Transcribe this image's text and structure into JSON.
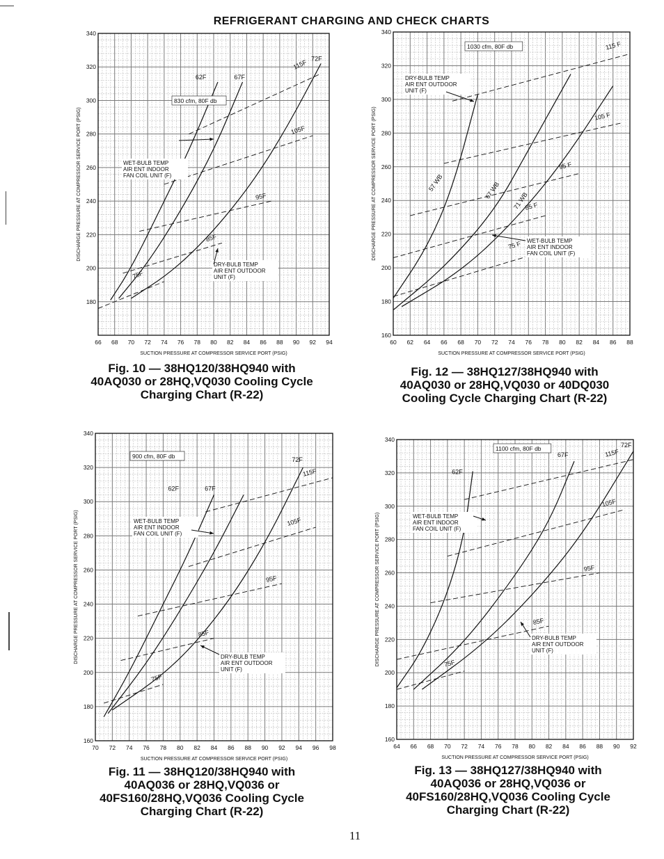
{
  "page": {
    "title": "REFRIGERANT CHARGING AND CHECK CHARTS",
    "page_number": "11"
  },
  "colors": {
    "ink": "#111111",
    "grid_minor": "#b9b9b9",
    "grid_major": "#7a7a7a"
  },
  "chart_data": [
    {
      "id": "fig10",
      "type": "line",
      "caption": [
        "Fig. 10 — 38HQ120/38HQ940 with",
        "40AQ030 or 28HQ,VQ030 Cooling Cycle",
        "Charging Chart (R-22)"
      ],
      "xlabel": "SUCTION PRESSURE AT COMPRESSOR SERVICE PORT (PSIG)",
      "ylabel": "DISCHARGE PRESSURE AT COMPRESSOR SERVICE PORT (PSIG)",
      "xlim": [
        66,
        94
      ],
      "ylim": [
        160,
        340
      ],
      "xticks": [
        66,
        68,
        70,
        72,
        74,
        76,
        78,
        80,
        82,
        84,
        86,
        88,
        90,
        92,
        94
      ],
      "yticks": [
        180,
        200,
        220,
        240,
        260,
        280,
        300,
        320,
        340
      ],
      "ytick_labels": [
        "180",
        "200",
        "220",
        "240",
        "260",
        "280",
        "300",
        "320",
        "340"
      ],
      "legend_box": "830 cfm, 80F db",
      "wb_note": [
        "WET-BULB TEMP",
        "AIR ENT INDOOR",
        "FAN COIL UNIT (F)"
      ],
      "db_note": [
        "DRY-BULB TEMP",
        "AIR ENT OUTDOOR",
        "UNIT (F)"
      ],
      "wb_series": [
        {
          "name": "62F",
          "points": [
            [
              67.5,
              181
            ],
            [
              70,
              200
            ],
            [
              74,
              240
            ],
            [
              77,
              270
            ],
            [
              80.5,
              311
            ]
          ]
        },
        {
          "name": "67F",
          "points": [
            [
              68.5,
              182
            ],
            [
              72,
              203
            ],
            [
              76,
              234
            ],
            [
              80,
              270
            ],
            [
              83.5,
              311
            ]
          ]
        },
        {
          "name": "72F",
          "points": [
            [
              70,
              182
            ],
            [
              75,
              198
            ],
            [
              80,
              222
            ],
            [
              85,
              253
            ],
            [
              89,
              285
            ],
            [
              93,
              322
            ]
          ]
        }
      ],
      "db_series": [
        {
          "name": "75F",
          "points": [
            [
              66,
              176
            ],
            [
              74,
              192
            ]
          ]
        },
        {
          "name": "85F",
          "points": [
            [
              69,
              197
            ],
            [
              81,
              215
            ]
          ]
        },
        {
          "name": "95F",
          "points": [
            [
              71,
              222
            ],
            [
              87,
              240
            ]
          ]
        },
        {
          "name": "105F",
          "points": [
            [
              74,
              250
            ],
            [
              92,
              279
            ]
          ]
        },
        {
          "name": "115F",
          "points": [
            [
              77,
              280
            ],
            [
              93,
              316
            ]
          ]
        }
      ]
    },
    {
      "id": "fig12",
      "type": "line",
      "caption": [
        "Fig. 12 — 38HQ127/38HQ940 with",
        "40AQ030 or 28HQ,VQ030 or 40DQ030",
        "Cooling Cycle Charging Chart (R-22)"
      ],
      "xlabel": "SUCTION PRESSURE AT COMPRESSOR SERVICE PORT (PSIG)",
      "ylabel": "DISCHARGE PRESSURE AT COMPRESSOR SERVICE PORT (PSIG)",
      "xlim": [
        60,
        88
      ],
      "ylim": [
        160,
        340
      ],
      "xticks": [
        60,
        62,
        64,
        66,
        68,
        70,
        72,
        74,
        76,
        78,
        80,
        82,
        84,
        86,
        88
      ],
      "yticks": [
        160,
        180,
        200,
        220,
        240,
        260,
        280,
        300,
        320,
        340
      ],
      "ytick_labels": [
        "160",
        "180",
        "200",
        "220",
        "240",
        "260",
        "280",
        "300",
        "320",
        "340"
      ],
      "legend_box": "1030 cfm, 80F db",
      "wb_note": [
        "WET-BULB TEMP",
        "AIR ENT INDOOR",
        "FAN COIL UNIT (F)"
      ],
      "db_note": [
        "DRY-BULB TEMP",
        "AIR ENT OUTDOOR",
        "UNIT (F)"
      ],
      "wb_series": [
        {
          "name": "57 WB",
          "points": [
            [
              60,
              182
            ],
            [
              64,
              212
            ],
            [
              67,
              247
            ],
            [
              70,
              303
            ]
          ]
        },
        {
          "name": "67 WB",
          "points": [
            [
              60,
              175
            ],
            [
              66,
              200
            ],
            [
              72,
              234
            ],
            [
              76,
              270
            ],
            [
              81,
              315
            ]
          ]
        },
        {
          "name": "71 WB",
          "points": [
            [
              61,
              177
            ],
            [
              68,
              198
            ],
            [
              74,
              226
            ],
            [
              80,
              262
            ],
            [
              86,
              308
            ]
          ]
        }
      ],
      "db_series": [
        {
          "name": "75 F",
          "points": [
            [
              60,
              183
            ],
            [
              76,
              207
            ]
          ]
        },
        {
          "name": "85 F",
          "points": [
            [
              60,
              206
            ],
            [
              78,
              231
            ]
          ]
        },
        {
          "name": "95 F",
          "points": [
            [
              62,
              231
            ],
            [
              82,
              256
            ]
          ]
        },
        {
          "name": "105 F",
          "points": [
            [
              66,
              262
            ],
            [
              87,
              286
            ]
          ]
        },
        {
          "name": "115 F",
          "points": [
            [
              67,
              299
            ],
            [
              88,
              327
            ]
          ]
        }
      ]
    },
    {
      "id": "fig11",
      "type": "line",
      "caption": [
        "Fig. 11 — 38HQ120/38HQ940 with",
        "40AQ036 or 28HQ,VQ036 or",
        "40FS160/28HQ,VQ036 Cooling Cycle",
        "Charging Chart (R-22)"
      ],
      "xlabel": "SUCTION PRESSURE AT COMPRESSOR SERVICE PORT (PSIG)",
      "ylabel": "DISCHARGE PRESSURE AT COMPRESSOR SERVICE PORT (PSIG)",
      "xlim": [
        70,
        98
      ],
      "ylim": [
        160,
        340
      ],
      "xticks": [
        70,
        72,
        74,
        76,
        78,
        80,
        82,
        84,
        86,
        88,
        90,
        92,
        94,
        96,
        98
      ],
      "yticks": [
        160,
        180,
        200,
        220,
        240,
        260,
        280,
        300,
        320,
        340
      ],
      "ytick_labels": [
        "160",
        "180",
        "200",
        "220",
        "240",
        "260",
        "280",
        "300",
        "320",
        "340"
      ],
      "legend_box": "900 cfm, 80F db",
      "wb_note": [
        "WET-BULB TEMP",
        "AIR ENT INDOOR",
        "FAN COIL UNIT (F)"
      ],
      "db_note": [
        "DRY-BULB TEMP",
        "AIR ENT OUTDOOR",
        "UNIT (F)"
      ],
      "wb_series": [
        {
          "name": "62F",
          "points": [
            [
              71,
              174
            ],
            [
              74,
              200
            ],
            [
              78,
              240
            ],
            [
              81,
              270
            ],
            [
              84,
              304
            ]
          ]
        },
        {
          "name": "67F",
          "points": [
            [
              71.5,
              176
            ],
            [
              76,
              205
            ],
            [
              80,
              236
            ],
            [
              84,
              270
            ],
            [
              87.5,
              304
            ]
          ]
        },
        {
          "name": "72F",
          "points": [
            [
              72,
              178
            ],
            [
              79,
              202
            ],
            [
              85,
              236
            ],
            [
              90,
              275
            ],
            [
              94.5,
              320
            ]
          ]
        }
      ],
      "db_series": [
        {
          "name": "75F",
          "points": [
            [
              71,
              182
            ],
            [
              78,
              193
            ]
          ]
        },
        {
          "name": "85F",
          "points": [
            [
              73,
              207
            ],
            [
              84,
              220
            ]
          ]
        },
        {
          "name": "95F",
          "points": [
            [
              75,
              233
            ],
            [
              92,
              252
            ]
          ]
        },
        {
          "name": "105F",
          "points": [
            [
              81,
              262
            ],
            [
              96,
              285
            ]
          ]
        },
        {
          "name": "115F",
          "points": [
            [
              83,
              294
            ],
            [
              98,
              314
            ]
          ]
        }
      ]
    },
    {
      "id": "fig13",
      "type": "line",
      "caption": [
        "Fig. 13 — 38HQ127/38HQ940 with",
        "40AQ036 or 28HQ,VQ036 or",
        "40FS160/28HQ,VQ036 Cooling Cycle",
        "Charging Chart (R-22)"
      ],
      "xlabel": "SUCTION PRESSURE AT COMPRESSOR SERVICE PORT (PSIG)",
      "ylabel": "DISCHARGE PRESSURE AT COMPRESSOR SERVICE PORT (PSIG)",
      "xlim": [
        64,
        92
      ],
      "ylim": [
        160,
        340
      ],
      "xticks": [
        64,
        66,
        68,
        70,
        72,
        74,
        76,
        78,
        80,
        82,
        84,
        86,
        88,
        90,
        92
      ],
      "yticks": [
        160,
        180,
        200,
        220,
        240,
        260,
        280,
        300,
        320,
        340
      ],
      "ytick_labels": [
        "160",
        "180",
        "200",
        "220",
        "240",
        "260",
        "280",
        "300",
        "320",
        "340"
      ],
      "legend_box": "1100 cfm, 80F db",
      "wb_note": [
        "WET-BULB TEMP",
        "AIR ENT INDOOR",
        "FAN COIL UNIT (F)"
      ],
      "db_note": [
        "DRY-BULB TEMP",
        "AIR ENT OUTDOOR",
        "UNIT (F)"
      ],
      "wb_series": [
        {
          "name": "62F",
          "points": [
            [
              64,
              191
            ],
            [
              67,
              213
            ],
            [
              70,
              247
            ],
            [
              72,
              283
            ],
            [
              73,
              321
            ]
          ]
        },
        {
          "name": "67F",
          "points": [
            [
              66,
              190
            ],
            [
              72,
              218
            ],
            [
              78,
              258
            ],
            [
              82,
              290
            ],
            [
              85,
              327
            ]
          ]
        },
        {
          "name": "72F",
          "points": [
            [
              67,
              190
            ],
            [
              74,
              216
            ],
            [
              80,
              246
            ],
            [
              86,
              283
            ],
            [
              92,
              333
            ]
          ]
        }
      ],
      "db_series": [
        {
          "name": "75F",
          "points": [
            [
              64,
              190
            ],
            [
              72,
              201
            ]
          ]
        },
        {
          "name": "85F",
          "points": [
            [
              64,
              208
            ],
            [
              82,
              228
            ]
          ]
        },
        {
          "name": "95F",
          "points": [
            [
              68,
              242
            ],
            [
              88,
              260
            ]
          ]
        },
        {
          "name": "105F",
          "points": [
            [
              70,
              270
            ],
            [
              91,
              298
            ]
          ]
        },
        {
          "name": "115F",
          "points": [
            [
              72,
              304
            ],
            [
              92,
              328
            ]
          ]
        }
      ]
    }
  ]
}
